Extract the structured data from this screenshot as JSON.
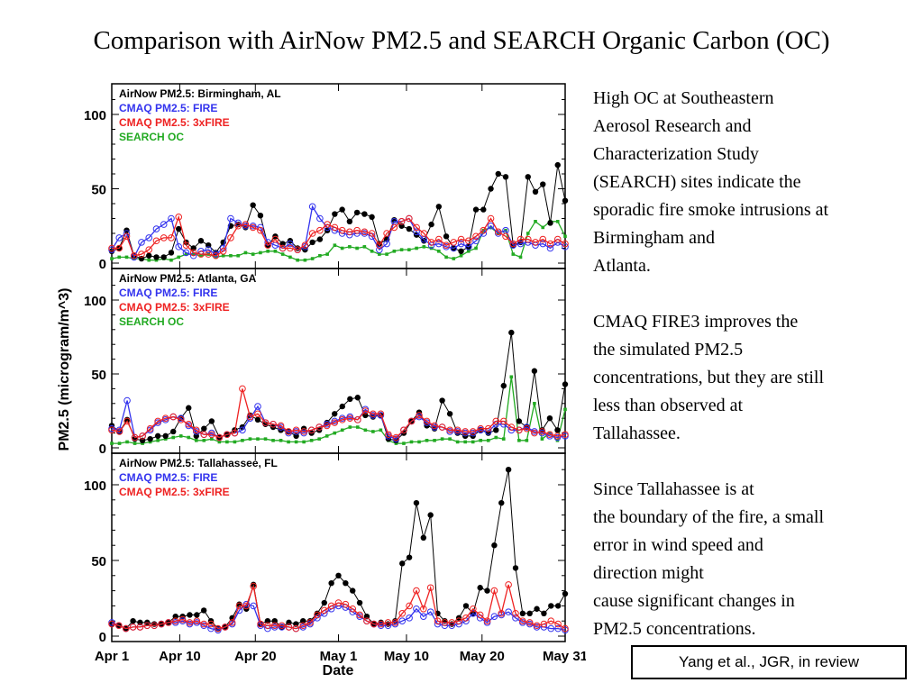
{
  "page": {
    "title": "Comparison with AirNow PM2.5 and SEARCH Organic Carbon (OC)",
    "paragraphs": [
      "High OC at Southeastern\nAerosol Research and\nCharacterization Study\n(SEARCH) sites indicate the\nsporadic fire smoke intrusions at\nBirmingham and\nAtlanta.",
      "CMAQ FIRE3 improves the\nthe simulated PM2.5\nconcentrations, but they are still\nless than observed at\nTallahassee.",
      "Since Tallahassee is at\nthe boundary of the fire, a small\nerror in wind speed and\ndirection might\ncause significant changes in\nPM2.5 concentrations."
    ],
    "citation": "Yang et al., JGR, in review"
  },
  "colors": {
    "airnow": "#000000",
    "fire": "#3333ee",
    "fire3x": "#ee2222",
    "search_oc": "#22aa22"
  },
  "chart_data": [
    {
      "type": "line",
      "ylabel": "PM2.5 (microgram/m^3)",
      "xlabel": "Date",
      "xlim": [
        0,
        60
      ],
      "ylim": [
        0,
        120
      ],
      "yticks": [
        0,
        50,
        100
      ],
      "xtick_positions": [
        0,
        9,
        19,
        30,
        39,
        49,
        60
      ],
      "xtick_labels": [
        "Apr 1",
        "Apr 10",
        "Apr 20",
        "May 1",
        "May 10",
        "May 20",
        "May 31"
      ],
      "series": [
        {
          "name": "AirNow PM2.5: Birmingham, AL",
          "color_key": "airnow",
          "marker": "filled",
          "values": [
            8,
            10,
            22,
            5,
            3,
            5,
            4,
            4,
            7,
            23,
            14,
            10,
            15,
            12,
            7,
            14,
            25,
            26,
            24,
            39,
            32,
            12,
            18,
            13,
            15,
            10,
            9,
            14,
            16,
            22,
            33,
            36,
            28,
            34,
            33,
            31,
            13,
            16,
            29,
            25,
            23,
            19,
            15,
            26,
            38,
            18,
            10,
            8,
            11,
            36,
            36,
            50,
            60,
            58,
            12,
            14,
            58,
            48,
            53,
            27,
            66,
            42
          ]
        },
        {
          "name": "CMAQ PM2.5: FIRE",
          "color_key": "fire",
          "marker": "open",
          "values": [
            9,
            17,
            20,
            4,
            14,
            17,
            23,
            26,
            30,
            11,
            7,
            5,
            8,
            9,
            6,
            10,
            30,
            27,
            25,
            25,
            24,
            14,
            12,
            10,
            13,
            9,
            11,
            38,
            30,
            24,
            22,
            20,
            19,
            20,
            20,
            18,
            9,
            13,
            28,
            28,
            30,
            21,
            16,
            12,
            13,
            11,
            10,
            13,
            11,
            15,
            20,
            25,
            20,
            22,
            12,
            13,
            14,
            12,
            13,
            10,
            14,
            11
          ]
        },
        {
          "name": "CMAQ PM2.5: 3xFIRE",
          "color_key": "fire3x",
          "marker": "open",
          "values": [
            10,
            10,
            18,
            5,
            6,
            9,
            15,
            17,
            17,
            31,
            12,
            7,
            6,
            6,
            5,
            8,
            17,
            25,
            26,
            24,
            22,
            12,
            16,
            10,
            10,
            9,
            12,
            20,
            22,
            26,
            24,
            22,
            21,
            22,
            21,
            20,
            12,
            20,
            24,
            28,
            30,
            24,
            20,
            14,
            16,
            12,
            14,
            16,
            15,
            18,
            22,
            30,
            21,
            18,
            13,
            16,
            16,
            14,
            16,
            13,
            16,
            13
          ]
        },
        {
          "name": "SEARCH OC",
          "color_key": "search_oc",
          "marker": "filled-small",
          "values": [
            3,
            4,
            4,
            3,
            3,
            2,
            2,
            3,
            2,
            4,
            6,
            6,
            5,
            6,
            4,
            5,
            5,
            5,
            7,
            6,
            7,
            8,
            8,
            6,
            4,
            2,
            2,
            3,
            5,
            6,
            12,
            10,
            11,
            10,
            11,
            8,
            6,
            6,
            8,
            9,
            9,
            10,
            11,
            10,
            8,
            4,
            3,
            5,
            8,
            10,
            22,
            24,
            20,
            22,
            6,
            4,
            20,
            28,
            24,
            28,
            28,
            18
          ]
        }
      ],
      "legend_labels": [
        "AirNow PM2.5: Birmingham, AL",
        "CMAQ PM2.5: FIRE",
        "CMAQ PM2.5: 3xFIRE",
        "SEARCH OC"
      ]
    },
    {
      "type": "line",
      "ylabel": "PM2.5 (microgram/m^3)",
      "xlabel": "Date",
      "xlim": [
        0,
        60
      ],
      "ylim": [
        0,
        120
      ],
      "yticks": [
        0,
        50,
        100
      ],
      "xtick_positions": [
        0,
        9,
        19,
        30,
        39,
        49,
        60
      ],
      "xtick_labels": [
        "Apr 1",
        "Apr 10",
        "Apr 20",
        "May 1",
        "May 10",
        "May 20",
        "May 31"
      ],
      "series": [
        {
          "name": "AirNow PM2.5: Atlanta, GA",
          "color_key": "airnow",
          "marker": "filled",
          "values": [
            15,
            11,
            19,
            6,
            5,
            6,
            8,
            8,
            11,
            20,
            27,
            8,
            13,
            18,
            7,
            9,
            12,
            14,
            22,
            19,
            16,
            14,
            12,
            11,
            8,
            13,
            10,
            12,
            17,
            23,
            28,
            33,
            34,
            22,
            21,
            22,
            6,
            5,
            10,
            18,
            24,
            15,
            13,
            32,
            23,
            10,
            8,
            8,
            12,
            10,
            12,
            42,
            78,
            18,
            14,
            52,
            12,
            20,
            12,
            43
          ]
        },
        {
          "name": "CMAQ PM2.5: FIRE",
          "color_key": "fire",
          "marker": "open",
          "values": [
            13,
            12,
            32,
            7,
            8,
            12,
            17,
            19,
            21,
            20,
            15,
            11,
            9,
            10,
            7,
            9,
            10,
            12,
            20,
            28,
            17,
            16,
            14,
            10,
            11,
            10,
            12,
            14,
            16,
            18,
            20,
            21,
            19,
            26,
            22,
            22,
            8,
            6,
            12,
            18,
            21,
            17,
            14,
            14,
            11,
            11,
            10,
            10,
            12,
            11,
            16,
            16,
            12,
            12,
            14,
            11,
            10,
            8,
            7,
            8
          ]
        },
        {
          "name": "CMAQ PM2.5: 3xFIRE",
          "color_key": "fire3x",
          "marker": "open",
          "values": [
            12,
            11,
            18,
            7,
            8,
            13,
            18,
            20,
            21,
            19,
            16,
            12,
            9,
            9,
            7,
            9,
            10,
            40,
            21,
            23,
            17,
            16,
            15,
            11,
            12,
            11,
            12,
            14,
            15,
            17,
            19,
            20,
            19,
            25,
            23,
            23,
            9,
            7,
            12,
            18,
            22,
            18,
            15,
            14,
            12,
            12,
            11,
            11,
            13,
            13,
            18,
            18,
            14,
            12,
            13,
            10,
            11,
            9,
            8,
            9
          ]
        },
        {
          "name": "SEARCH OC",
          "color_key": "search_oc",
          "marker": "filled-small",
          "values": [
            3,
            3,
            4,
            3,
            3,
            4,
            5,
            6,
            7,
            8,
            7,
            5,
            5,
            6,
            4,
            4,
            4,
            5,
            6,
            6,
            6,
            5,
            5,
            4,
            4,
            4,
            5,
            6,
            8,
            10,
            12,
            14,
            14,
            12,
            11,
            12,
            5,
            3,
            3,
            4,
            4,
            5,
            5,
            6,
            6,
            4,
            4,
            4,
            5,
            5,
            7,
            6,
            48,
            5,
            5,
            30,
            6,
            10,
            5,
            26
          ]
        }
      ],
      "legend_labels": [
        "AirNow PM2.5: Atlanta, GA",
        "CMAQ PM2.5: FIRE",
        "CMAQ PM2.5: 3xFIRE",
        "SEARCH OC"
      ]
    },
    {
      "type": "line",
      "ylabel": "PM2.5 (microgram/m^3)",
      "xlabel": "Date",
      "xlim": [
        0,
        60
      ],
      "ylim": [
        0,
        120
      ],
      "yticks": [
        0,
        50,
        100
      ],
      "xtick_positions": [
        0,
        9,
        19,
        30,
        39,
        49,
        60
      ],
      "xtick_labels": [
        "Apr 1",
        "Apr 10",
        "Apr 20",
        "May 1",
        "May 10",
        "May 20",
        "May 31"
      ],
      "series": [
        {
          "name": "AirNow PM2.5: Tallahassee, FL",
          "color_key": "airnow",
          "marker": "filled",
          "values": [
            8,
            7,
            5,
            10,
            9,
            9,
            8,
            8,
            9,
            13,
            13,
            14,
            14,
            17,
            10,
            5,
            6,
            12,
            21,
            18,
            34,
            8,
            10,
            10,
            6,
            9,
            8,
            10,
            10,
            15,
            22,
            35,
            40,
            35,
            30,
            22,
            13,
            8,
            9,
            8,
            10,
            48,
            52,
            88,
            65,
            80,
            15,
            10,
            8,
            12,
            20,
            15,
            32,
            30,
            60,
            88,
            110,
            45,
            15,
            15,
            18,
            15,
            20,
            20,
            28
          ]
        },
        {
          "name": "CMAQ PM2.5: FIRE",
          "color_key": "fire",
          "marker": "open",
          "values": [
            9,
            7,
            5,
            6,
            6,
            7,
            7,
            8,
            9,
            9,
            10,
            8,
            9,
            7,
            5,
            4,
            6,
            8,
            17,
            21,
            20,
            7,
            5,
            6,
            6,
            6,
            5,
            6,
            8,
            12,
            15,
            18,
            20,
            19,
            16,
            13,
            10,
            8,
            7,
            7,
            8,
            10,
            12,
            18,
            13,
            16,
            8,
            7,
            7,
            8,
            10,
            15,
            12,
            9,
            13,
            14,
            16,
            12,
            9,
            8,
            6,
            6,
            5,
            5,
            4
          ]
        },
        {
          "name": "CMAQ PM2.5: 3xFIRE",
          "color_key": "fire3x",
          "marker": "open",
          "values": [
            8,
            7,
            5,
            6,
            6,
            7,
            7,
            8,
            9,
            10,
            11,
            9,
            10,
            8,
            8,
            5,
            6,
            9,
            20,
            20,
            33,
            8,
            7,
            7,
            7,
            6,
            5,
            7,
            9,
            14,
            17,
            20,
            22,
            21,
            18,
            14,
            10,
            8,
            8,
            9,
            9,
            15,
            20,
            30,
            18,
            32,
            10,
            9,
            9,
            10,
            12,
            18,
            14,
            10,
            30,
            15,
            34,
            15,
            10,
            9,
            7,
            8,
            10,
            8,
            5
          ]
        }
      ],
      "legend_labels": [
        "AirNow PM2.5: Tallahassee, FL",
        "CMAQ PM2.5: FIRE",
        "CMAQ PM2.5: 3xFIRE"
      ]
    }
  ]
}
